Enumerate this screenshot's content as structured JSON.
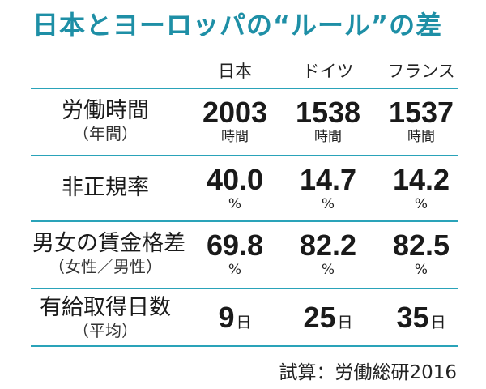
{
  "title": "日本とヨーロッパの“ルール”の差",
  "columns": [
    "日本",
    "ドイツ",
    "フランス"
  ],
  "rows": [
    {
      "label": "労働時間",
      "sublabel": "（年間）",
      "values": [
        "2003",
        "1538",
        "1537"
      ],
      "unit": "時間"
    },
    {
      "label": "非正規率",
      "sublabel": "",
      "values": [
        "40.0",
        "14.7",
        "14.2"
      ],
      "unit": "%"
    },
    {
      "label": "男女の賃金格差",
      "sublabel": "（女性／男性）",
      "values": [
        "69.8",
        "82.2",
        "82.5"
      ],
      "unit": "%"
    },
    {
      "label": "有給取得日数",
      "sublabel": "（平均）",
      "values": [
        "9",
        "25",
        "35"
      ],
      "unit": "日"
    }
  ],
  "source": "試算：労働総研2016",
  "colors": {
    "title": "#1e8fa6",
    "rule": "#2aa3b9"
  }
}
